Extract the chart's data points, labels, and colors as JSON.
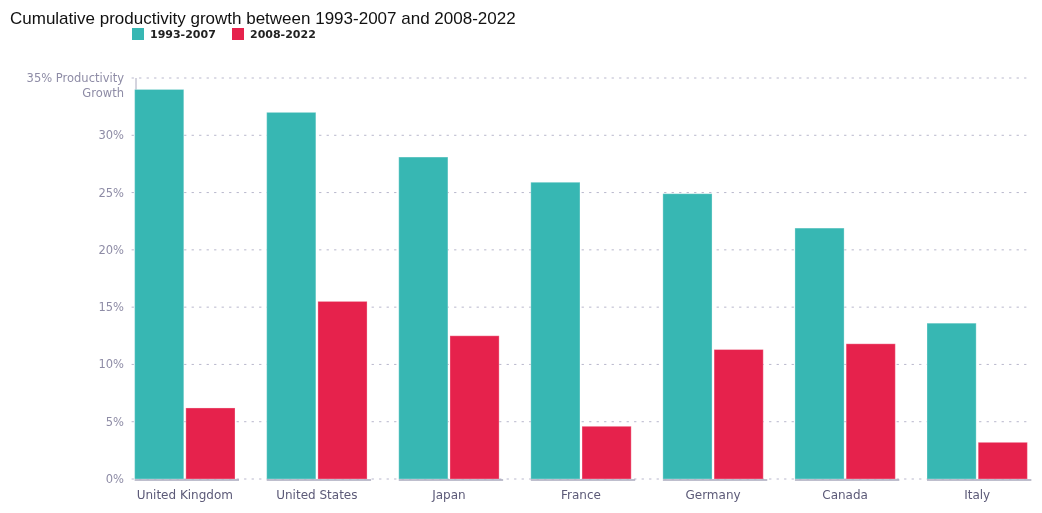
{
  "chart_data": {
    "type": "bar",
    "title": "Cumulative productivity growth between 1993-2007 and 2008-2022",
    "categories": [
      "United Kingdom",
      "United States",
      "Japan",
      "France",
      "Germany",
      "Canada",
      "Italy"
    ],
    "series": [
      {
        "name": "1993-2007",
        "color": "#37b7b3",
        "values": [
          34.0,
          32.0,
          28.1,
          25.9,
          24.9,
          21.9,
          13.6
        ]
      },
      {
        "name": "2008-2022",
        "color": "#e6224c",
        "values": [
          6.2,
          15.5,
          12.5,
          4.6,
          11.3,
          11.8,
          3.2
        ]
      }
    ],
    "ylim": [
      0,
      35
    ],
    "yticks": [
      {
        "value": 0,
        "label": "0%"
      },
      {
        "value": 5,
        "label": "5%"
      },
      {
        "value": 10,
        "label": "10%"
      },
      {
        "value": 15,
        "label": "15%"
      },
      {
        "value": 20,
        "label": "20%"
      },
      {
        "value": 25,
        "label": "25%"
      },
      {
        "value": 30,
        "label": "30%"
      },
      {
        "value": 35,
        "label": "35% Productivity Growth"
      }
    ],
    "grid": "y",
    "legend": "top left"
  }
}
